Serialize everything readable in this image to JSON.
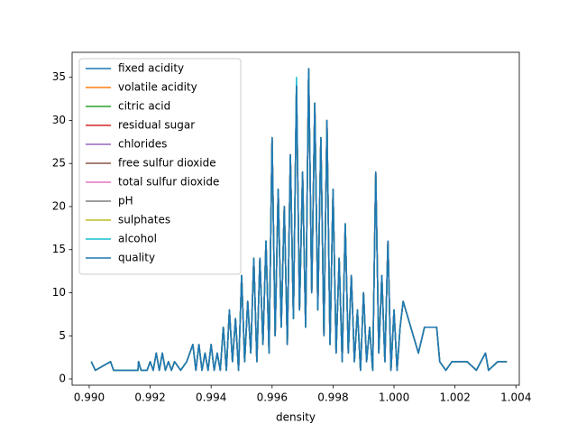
{
  "chart_data": {
    "type": "line",
    "xlabel": "density",
    "x": [
      0.99007,
      0.9902,
      0.9907,
      0.9908,
      0.9916,
      0.99162,
      0.9917,
      0.9919,
      0.992,
      0.9921,
      0.9922,
      0.9923,
      0.9924,
      0.9925,
      0.9926,
      0.9927,
      0.9928,
      0.993,
      0.9932,
      0.9934,
      0.9935,
      0.9936,
      0.9937,
      0.9938,
      0.9939,
      0.994,
      0.9941,
      0.9942,
      0.9943,
      0.9944,
      0.9945,
      0.9946,
      0.9947,
      0.9948,
      0.9949,
      0.995,
      0.9951,
      0.9952,
      0.9953,
      0.9954,
      0.9955,
      0.9956,
      0.9957,
      0.9958,
      0.9959,
      0.996,
      0.9961,
      0.9962,
      0.9963,
      0.9964,
      0.9965,
      0.9966,
      0.9967,
      0.9968,
      0.9969,
      0.997,
      0.9971,
      0.9972,
      0.9973,
      0.9974,
      0.9975,
      0.9976,
      0.9977,
      0.9978,
      0.9979,
      0.998,
      0.9981,
      0.9982,
      0.9983,
      0.9984,
      0.9985,
      0.9986,
      0.9987,
      0.9988,
      0.9989,
      0.999,
      0.9991,
      0.9992,
      0.9993,
      0.9994,
      0.9995,
      0.9996,
      0.9997,
      0.9998,
      0.9999,
      1.0,
      1.0001,
      1.0002,
      1.0003,
      1.0008,
      1.001,
      1.0014,
      1.0015,
      1.0017,
      1.0019,
      1.0024,
      1.0027,
      1.003,
      1.0031,
      1.0034,
      1.0037
    ],
    "series": [
      {
        "name": "fixed acidity",
        "color": "#1f77b4",
        "values": [
          2,
          1,
          2,
          1,
          1,
          2,
          1,
          1,
          2,
          1,
          3,
          1,
          3,
          1,
          2,
          1,
          2,
          1,
          2,
          4,
          1,
          4,
          1,
          3,
          1,
          4,
          1,
          3,
          1,
          6,
          1,
          8,
          2,
          7,
          1,
          12,
          2,
          9,
          3,
          14,
          2,
          14,
          4,
          16,
          3,
          28,
          5,
          22,
          6,
          20,
          4,
          26,
          7,
          34,
          8,
          24,
          6,
          36,
          10,
          32,
          8,
          28,
          5,
          30,
          4,
          22,
          3,
          14,
          2,
          18,
          3,
          12,
          2,
          8,
          1,
          10,
          2,
          6,
          1,
          24,
          3,
          12,
          2,
          16,
          1,
          8,
          1,
          6,
          9,
          3,
          6,
          6,
          2,
          1,
          2,
          2,
          1,
          3,
          1,
          2,
          2
        ]
      },
      {
        "name": "volatile acidity",
        "color": "#ff7f0e",
        "values": [
          2,
          1,
          2,
          1,
          1,
          2,
          1,
          1,
          2,
          1,
          3,
          1,
          3,
          1,
          2,
          1,
          2,
          1,
          2,
          4,
          1,
          4,
          1,
          3,
          1,
          4,
          1,
          3,
          1,
          6,
          1,
          8,
          2,
          7,
          1,
          12,
          2,
          9,
          3,
          14,
          2,
          14,
          4,
          16,
          3,
          28,
          5,
          22,
          6,
          20,
          4,
          26,
          7,
          34,
          8,
          24,
          6,
          36,
          10,
          32,
          8,
          28,
          5,
          30,
          4,
          22,
          3,
          14,
          2,
          18,
          3,
          12,
          2,
          8,
          1,
          10,
          2,
          6,
          1,
          24,
          3,
          12,
          2,
          16,
          1,
          8,
          1,
          6,
          9,
          3,
          6,
          6,
          2,
          1,
          2,
          2,
          1,
          3,
          1,
          2,
          2
        ]
      },
      {
        "name": "citric acid",
        "color": "#2ca02c",
        "values": [
          2,
          1,
          2,
          1,
          1,
          2,
          1,
          1,
          2,
          1,
          3,
          1,
          3,
          1,
          2,
          1,
          2,
          1,
          2,
          4,
          1,
          4,
          1,
          3,
          1,
          4,
          1,
          3,
          1,
          6,
          1,
          8,
          2,
          7,
          1,
          12,
          2,
          9,
          3,
          14,
          2,
          14,
          4,
          16,
          3,
          28,
          5,
          22,
          6,
          20,
          4,
          26,
          7,
          34,
          8,
          24,
          6,
          36,
          10,
          32,
          8,
          28,
          5,
          30,
          4,
          22,
          3,
          14,
          2,
          18,
          3,
          12,
          2,
          8,
          1,
          10,
          2,
          6,
          1,
          24,
          3,
          12,
          2,
          16,
          1,
          8,
          1,
          6,
          9,
          3,
          6,
          6,
          2,
          1,
          2,
          2,
          1,
          3,
          1,
          2,
          2
        ]
      },
      {
        "name": "residual sugar",
        "color": "#d62728",
        "values": [
          2,
          1,
          2,
          1,
          1,
          2,
          1,
          1,
          2,
          1,
          3,
          1,
          3,
          1,
          2,
          1,
          2,
          1,
          2,
          4,
          1,
          4,
          1,
          3,
          1,
          4,
          1,
          3,
          1,
          6,
          1,
          8,
          2,
          7,
          1,
          12,
          2,
          9,
          3,
          14,
          2,
          14,
          4,
          16,
          3,
          28,
          5,
          22,
          6,
          20,
          4,
          26,
          7,
          34,
          8,
          24,
          6,
          36,
          10,
          32,
          8,
          28,
          5,
          30,
          4,
          22,
          3,
          14,
          2,
          18,
          3,
          12,
          2,
          8,
          1,
          10,
          2,
          6,
          1,
          24,
          3,
          12,
          2,
          16,
          1,
          8,
          1,
          6,
          9,
          3,
          6,
          6,
          2,
          1,
          2,
          2,
          1,
          3,
          1,
          2,
          2
        ]
      },
      {
        "name": "chlorides",
        "color": "#9467bd",
        "values": [
          2,
          1,
          2,
          1,
          1,
          2,
          1,
          1,
          2,
          1,
          3,
          1,
          3,
          1,
          2,
          1,
          2,
          1,
          2,
          4,
          1,
          4,
          1,
          3,
          1,
          4,
          1,
          3,
          1,
          6,
          1,
          8,
          2,
          7,
          1,
          12,
          2,
          9,
          3,
          14,
          2,
          14,
          4,
          16,
          3,
          28,
          5,
          22,
          6,
          20,
          4,
          26,
          7,
          34,
          8,
          24,
          6,
          36,
          10,
          32,
          8,
          28,
          5,
          30,
          4,
          22,
          3,
          14,
          2,
          18,
          3,
          12,
          2,
          8,
          1,
          10,
          2,
          6,
          1,
          24,
          3,
          12,
          2,
          16,
          1,
          8,
          1,
          6,
          9,
          3,
          6,
          6,
          2,
          1,
          2,
          2,
          1,
          3,
          1,
          2,
          2
        ]
      },
      {
        "name": "free sulfur dioxide",
        "color": "#8c564b",
        "values": [
          2,
          1,
          2,
          1,
          1,
          2,
          1,
          1,
          2,
          1,
          3,
          1,
          3,
          1,
          2,
          1,
          2,
          1,
          2,
          4,
          1,
          4,
          1,
          3,
          1,
          4,
          1,
          3,
          1,
          6,
          1,
          8,
          2,
          7,
          1,
          12,
          2,
          9,
          3,
          14,
          2,
          14,
          4,
          16,
          3,
          28,
          5,
          22,
          6,
          20,
          4,
          26,
          7,
          34,
          8,
          24,
          6,
          36,
          10,
          32,
          8,
          28,
          5,
          30,
          4,
          22,
          3,
          14,
          2,
          18,
          3,
          12,
          2,
          8,
          1,
          10,
          2,
          6,
          1,
          24,
          3,
          12,
          2,
          16,
          1,
          8,
          1,
          6,
          9,
          3,
          6,
          6,
          2,
          1,
          2,
          2,
          1,
          3,
          1,
          2,
          2
        ]
      },
      {
        "name": "total sulfur dioxide",
        "color": "#e377c2",
        "values": [
          2,
          1,
          2,
          1,
          1,
          2,
          1,
          1,
          2,
          1,
          3,
          1,
          3,
          1,
          2,
          1,
          2,
          1,
          2,
          4,
          1,
          4,
          1,
          3,
          1,
          4,
          1,
          3,
          1,
          6,
          1,
          8,
          2,
          7,
          1,
          12,
          2,
          9,
          3,
          14,
          2,
          14,
          4,
          16,
          3,
          28,
          5,
          22,
          6,
          20,
          4,
          26,
          7,
          34,
          8,
          24,
          6,
          36,
          10,
          32,
          8,
          28,
          5,
          30,
          4,
          22,
          3,
          14,
          2,
          18,
          3,
          12,
          2,
          8,
          1,
          10,
          2,
          6,
          1,
          24,
          3,
          12,
          2,
          16,
          1,
          8,
          1,
          6,
          9,
          3,
          6,
          6,
          2,
          1,
          2,
          2,
          1,
          3,
          1,
          2,
          2
        ]
      },
      {
        "name": "pH",
        "color": "#7f7f7f",
        "values": [
          2,
          1,
          2,
          1,
          1,
          2,
          1,
          1,
          2,
          1,
          3,
          1,
          3,
          1,
          2,
          1,
          2,
          1,
          2,
          4,
          1,
          4,
          1,
          3,
          1,
          4,
          1,
          3,
          1,
          6,
          1,
          8,
          2,
          7,
          1,
          12,
          2,
          9,
          3,
          14,
          2,
          14,
          4,
          16,
          3,
          28,
          5,
          22,
          6,
          20,
          4,
          26,
          7,
          34,
          8,
          24,
          6,
          36,
          10,
          32,
          8,
          28,
          5,
          30,
          4,
          22,
          3,
          14,
          2,
          18,
          3,
          12,
          2,
          8,
          1,
          10,
          2,
          6,
          1,
          24,
          3,
          12,
          2,
          16,
          1,
          8,
          1,
          6,
          9,
          3,
          6,
          6,
          2,
          1,
          2,
          2,
          1,
          3,
          1,
          2,
          2
        ]
      },
      {
        "name": "sulphates",
        "color": "#bcbd22",
        "values": [
          2,
          1,
          2,
          1,
          1,
          2,
          1,
          1,
          2,
          1,
          3,
          1,
          3,
          1,
          2,
          1,
          2,
          1,
          2,
          4,
          1,
          4,
          1,
          3,
          1,
          4,
          1,
          3,
          1,
          6,
          1,
          8,
          2,
          7,
          1,
          12,
          2,
          9,
          3,
          14,
          2,
          14,
          4,
          16,
          3,
          28,
          5,
          22,
          6,
          20,
          4,
          26,
          7,
          34,
          8,
          24,
          6,
          36,
          10,
          32,
          8,
          28,
          5,
          30,
          4,
          22,
          3,
          14,
          2,
          18,
          3,
          12,
          2,
          8,
          1,
          10,
          2,
          6,
          1,
          24,
          3,
          12,
          2,
          16,
          1,
          8,
          1,
          6,
          9,
          3,
          6,
          6,
          2,
          1,
          2,
          2,
          1,
          3,
          1,
          2,
          2
        ]
      },
      {
        "name": "alcohol",
        "color": "#17becf",
        "values": [
          2,
          1,
          2,
          1,
          1,
          2,
          1,
          1,
          2,
          1,
          3,
          1,
          3,
          1,
          2,
          1,
          2,
          1,
          2,
          4,
          1,
          4,
          1,
          3,
          1,
          4,
          1,
          3,
          1,
          6,
          1,
          8,
          2,
          7,
          1,
          12,
          2,
          9,
          3,
          14,
          2,
          14,
          4,
          16,
          3,
          28,
          5,
          22,
          6,
          20,
          4,
          26,
          7,
          35,
          8,
          24,
          6,
          36,
          10,
          32,
          8,
          28,
          5,
          30,
          4,
          22,
          3,
          14,
          2,
          18,
          3,
          12,
          2,
          8,
          1,
          10,
          2,
          6,
          1,
          24,
          3,
          12,
          2,
          16,
          1,
          8,
          1,
          6,
          9,
          3,
          6,
          6,
          2,
          1,
          2,
          2,
          1,
          3,
          1,
          2,
          2
        ]
      },
      {
        "name": "quality",
        "color": "#1f77b4",
        "values": [
          2,
          1,
          2,
          1,
          1,
          2,
          1,
          1,
          2,
          1,
          3,
          1,
          3,
          1,
          2,
          1,
          2,
          1,
          2,
          4,
          1,
          4,
          1,
          3,
          1,
          4,
          1,
          3,
          1,
          6,
          1,
          8,
          2,
          7,
          1,
          12,
          2,
          9,
          3,
          14,
          2,
          14,
          4,
          16,
          3,
          28,
          5,
          22,
          6,
          20,
          4,
          26,
          7,
          34,
          8,
          24,
          6,
          36,
          10,
          32,
          8,
          28,
          5,
          30,
          4,
          22,
          3,
          14,
          2,
          18,
          3,
          12,
          2,
          8,
          1,
          10,
          2,
          6,
          1,
          24,
          3,
          12,
          2,
          16,
          1,
          8,
          1,
          6,
          9,
          3,
          6,
          6,
          2,
          1,
          2,
          2,
          1,
          3,
          1,
          2,
          2
        ]
      }
    ],
    "xlim": [
      0.98944,
      1.00411
    ],
    "xticks": [
      {
        "value": 0.99,
        "label": "0.990"
      },
      {
        "value": 0.992,
        "label": "0.992"
      },
      {
        "value": 0.994,
        "label": "0.994"
      },
      {
        "value": 0.996,
        "label": "0.996"
      },
      {
        "value": 0.998,
        "label": "0.998"
      },
      {
        "value": 1.0,
        "label": "1.000"
      },
      {
        "value": 1.002,
        "label": "1.002"
      },
      {
        "value": 1.004,
        "label": "1.004"
      }
    ],
    "ylim": [
      -0.73,
      37.9
    ],
    "yticks": [
      0,
      5,
      10,
      15,
      20,
      25,
      30,
      35
    ],
    "legend": "upper left"
  }
}
